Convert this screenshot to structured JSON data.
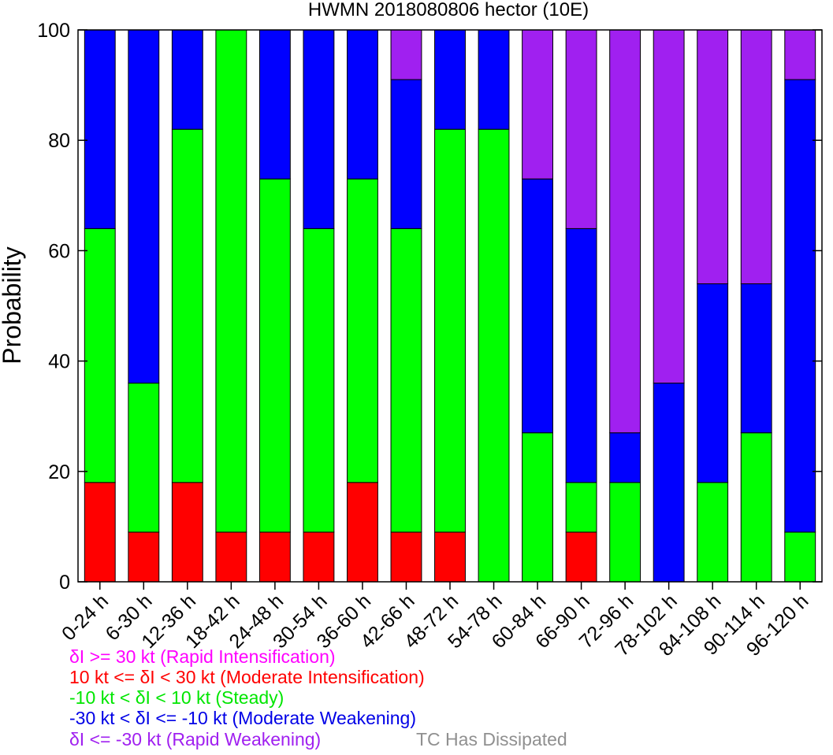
{
  "chart_data": {
    "type": "bar",
    "stacked": true,
    "title": "HWMN 2018080806 hector (10E)",
    "xlabel": "",
    "ylabel": "Probability",
    "ylim": [
      0,
      100
    ],
    "yticks": [
      0,
      20,
      40,
      60,
      80,
      100
    ],
    "grid": false,
    "categories": [
      "0-24 h",
      "6-30 h",
      "12-36 h",
      "18-42 h",
      "24-48 h",
      "30-54 h",
      "36-60 h",
      "42-66 h",
      "48-72 h",
      "54-78 h",
      "60-84 h",
      "66-90 h",
      "72-96 h",
      "78-102 h",
      "84-108 h",
      "90-114 h",
      "96-120 h"
    ],
    "series": [
      {
        "key": "mod_int",
        "color": "#ff0000",
        "values": [
          18,
          9,
          18,
          9,
          9,
          9,
          18,
          9,
          9,
          0,
          0,
          9,
          0,
          0,
          0,
          0,
          0
        ]
      },
      {
        "key": "steady",
        "color": "#00ff00",
        "values": [
          46,
          27,
          64,
          91,
          64,
          55,
          55,
          55,
          73,
          82,
          27,
          9,
          18,
          0,
          18,
          27,
          9
        ]
      },
      {
        "key": "mod_weak",
        "color": "#0000ff",
        "values": [
          36,
          64,
          18,
          0,
          27,
          36,
          27,
          27,
          18,
          18,
          46,
          46,
          9,
          36,
          36,
          27,
          82
        ]
      },
      {
        "key": "rapid_weak",
        "color": "#a020f0",
        "values": [
          0,
          0,
          0,
          0,
          0,
          0,
          0,
          9,
          0,
          0,
          27,
          36,
          73,
          64,
          46,
          46,
          9
        ]
      }
    ],
    "legend": {
      "placement": "bottom",
      "entries": [
        {
          "label": "δI >= 30 kt (Rapid Intensification)",
          "color": "#ff00ff"
        },
        {
          "label": "10 kt <= δI < 30 kt (Moderate Intensification)",
          "color": "#ff0000"
        },
        {
          "label": "-10 kt < δI < 10 kt (Steady)",
          "color": "#00e600"
        },
        {
          "label": "-30 kt < δI <= -10 kt (Moderate Weakening)",
          "color": "#0000e6"
        },
        {
          "label": "δI <= -30 kt (Rapid Weakening)",
          "color": "#a020f0"
        },
        {
          "label": "TC Has Dissipated",
          "color": "#909090"
        }
      ]
    }
  }
}
